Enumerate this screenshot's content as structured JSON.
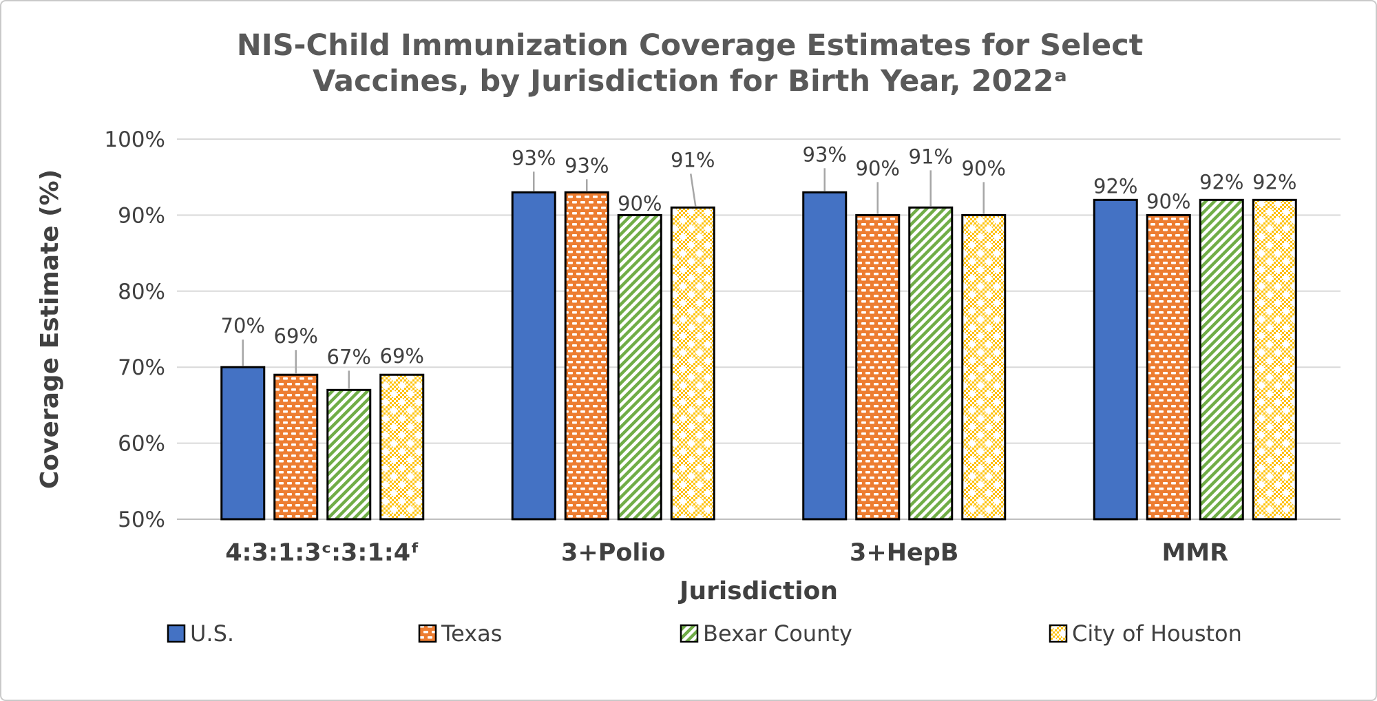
{
  "page": {
    "background": "#FFFFFF",
    "border_color": "#C9C9C9"
  },
  "chart_data": {
    "type": "bar",
    "title_lines": [
      "NIS-Child Immunization Coverage Estimates for Select",
      "Vaccines, by Jurisdiction for Birth Year, 2022ᵃ"
    ],
    "title_full": "NIS-Child Immunization Coverage Estimates for Select Vaccines, by Jurisdiction for Birth Year, 2022ᵃ",
    "xlabel": "Jurisdiction",
    "ylabel": "Coverage Estimate (%)",
    "categories": [
      "4:3:1:3ᶜ:3:1:4ᶠ",
      "3+Polio",
      "3+HepB",
      "MMR"
    ],
    "series": [
      {
        "name": "U.S.",
        "pattern": "solid",
        "color": "#4472C4",
        "values": [
          70,
          93,
          93,
          92
        ],
        "labels": [
          "70%",
          "93%",
          "93%",
          "92%"
        ]
      },
      {
        "name": "Texas",
        "pattern": "brick-dash",
        "color": "#ED7D31",
        "values": [
          69,
          93,
          90,
          90
        ],
        "labels": [
          "69%",
          "93%",
          "90%",
          "90%"
        ]
      },
      {
        "name": "Bexar County",
        "pattern": "diagonal-stripes",
        "color": "#70AD47",
        "values": [
          67,
          90,
          91,
          92
        ],
        "labels": [
          "67%",
          "90%",
          "91%",
          "92%"
        ]
      },
      {
        "name": "City of Houston",
        "pattern": "checker-diamond",
        "color": "#FFC000",
        "values": [
          69,
          91,
          90,
          92
        ],
        "labels": [
          "69%",
          "91%",
          "90%",
          "92%"
        ]
      }
    ],
    "ylim": [
      50,
      100
    ],
    "yticks": [
      50,
      60,
      70,
      80,
      90,
      100
    ],
    "ytick_labels": [
      "50%",
      "60%",
      "70%",
      "80%",
      "90%",
      "100%"
    ],
    "grid": true,
    "legend_position": "bottom",
    "colors": {
      "title_text": "#595959",
      "axis_text": "#404040",
      "gridline": "#D9D9D9",
      "baseline": "#BFBFBF",
      "leader_line": "#A6A6A6",
      "bar_border": "#000000"
    }
  }
}
